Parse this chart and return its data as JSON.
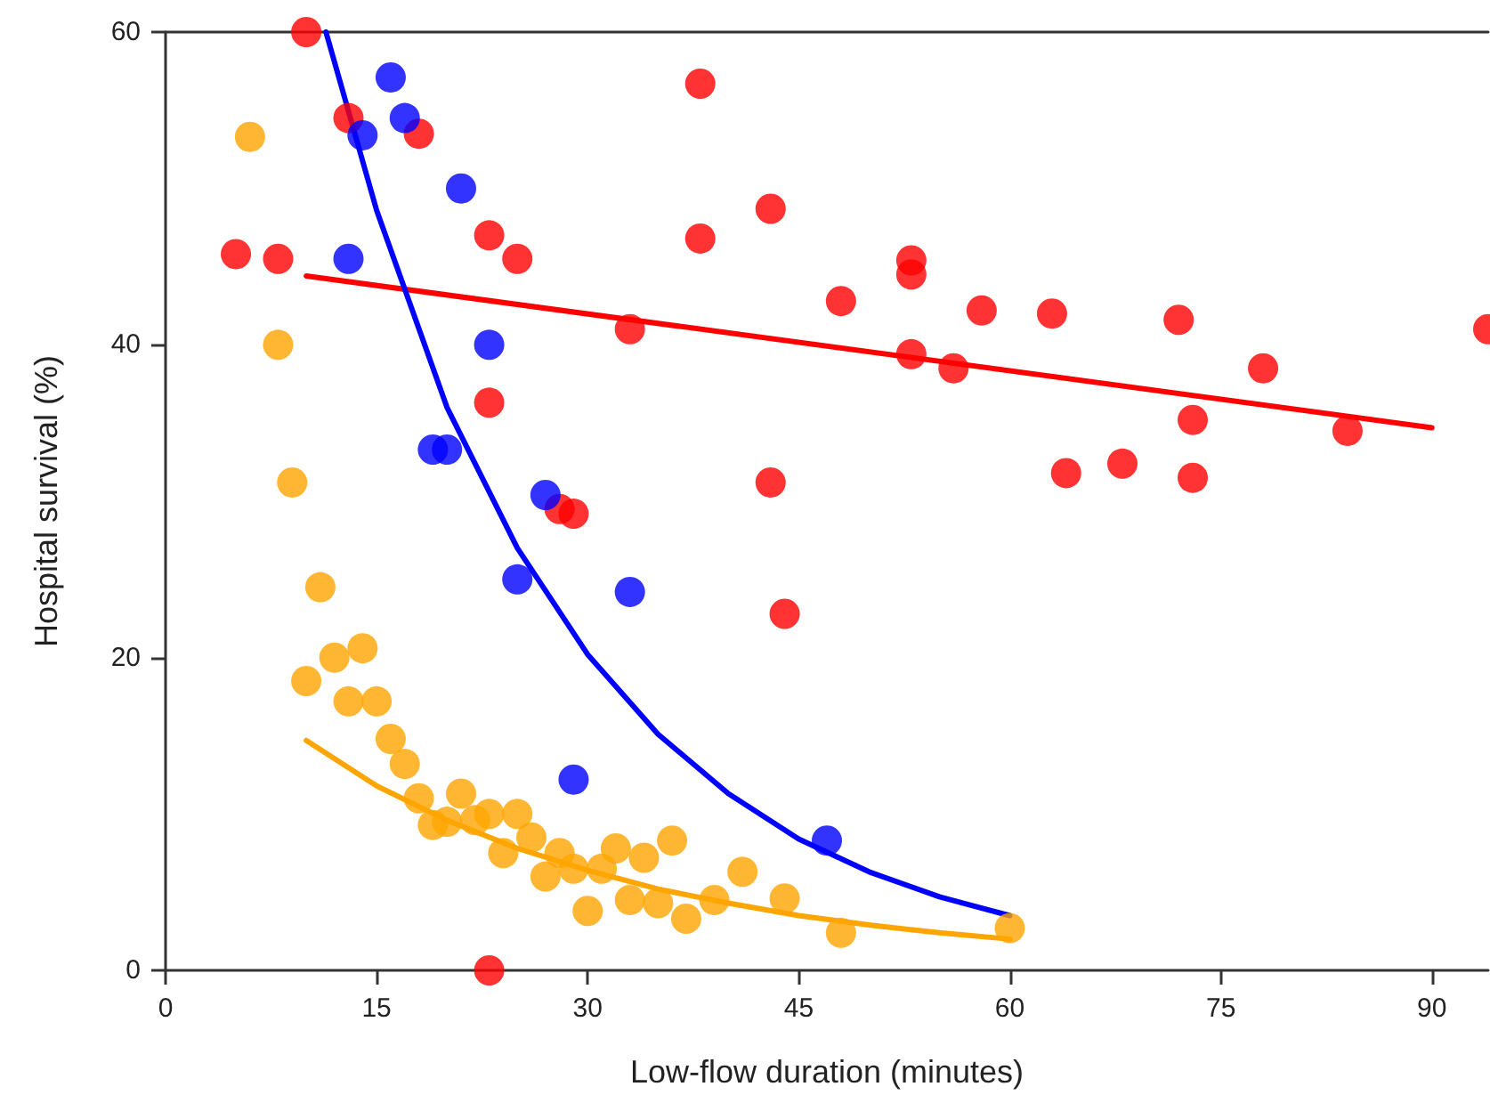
{
  "chart_data": {
    "type": "scatter",
    "xlabel": "Low-flow duration (minutes)",
    "ylabel": "Hospital survival (%)",
    "xlim": [
      0,
      94
    ],
    "xticks": [
      0,
      15,
      30,
      45,
      60,
      75,
      90
    ],
    "ylim": [
      0,
      60
    ],
    "yticks": [
      0,
      20,
      40,
      60
    ],
    "grid": false,
    "marker": "circle",
    "series": [
      {
        "color": "#ff0000",
        "x": [
          5,
          8,
          10,
          13,
          18,
          23,
          25,
          23,
          23,
          28,
          29,
          33,
          38,
          38,
          43,
          43,
          44,
          48,
          53,
          53,
          53,
          56,
          58,
          63,
          64,
          68,
          72,
          73,
          73,
          78,
          84,
          94
        ],
        "values": [
          45.8,
          45.5,
          60,
          54.5,
          53.5,
          47,
          45.5,
          36.3,
          0,
          29.5,
          29.2,
          41,
          56.7,
          46.8,
          48.7,
          31.2,
          22.8,
          42.8,
          45.4,
          44.5,
          39.4,
          38.5,
          42.2,
          42,
          31.8,
          32.4,
          41.6,
          35.2,
          31.5,
          38.5,
          34.5,
          41
        ]
      },
      {
        "color": "#0000ff",
        "x": [
          13,
          14,
          16,
          17,
          19,
          20,
          21,
          23,
          25,
          27,
          29,
          33,
          47
        ],
        "values": [
          45.5,
          53.4,
          57.1,
          54.5,
          33.3,
          33.3,
          50,
          40,
          25,
          30.4,
          12.2,
          24.2,
          8.3
        ]
      },
      {
        "color": "#ffa500",
        "x": [
          6,
          8,
          9,
          10,
          11,
          12,
          13,
          14,
          15,
          16,
          17,
          18,
          19,
          20,
          21,
          22,
          23,
          24,
          25,
          26,
          27,
          28,
          29,
          30,
          31,
          32,
          33,
          34,
          35,
          36,
          37,
          39,
          41,
          44,
          48,
          60
        ],
        "values": [
          53.3,
          40,
          31.2,
          18.5,
          24.5,
          20,
          17.2,
          20.6,
          17.2,
          14.8,
          13.2,
          11,
          9.3,
          9.5,
          11.3,
          9.6,
          10,
          7.5,
          10,
          8.5,
          6,
          7.5,
          6.5,
          3.8,
          6.5,
          7.8,
          4.5,
          7.2,
          4.3,
          8.3,
          3.3,
          4.5,
          6.3,
          4.6,
          2.4,
          2.7
        ]
      },
      {
        "type": "line",
        "color": "#ff0000",
        "marker": "none",
        "x": [
          10,
          90
        ],
        "values": [
          44.4,
          34.7
        ]
      },
      {
        "type": "line",
        "color": "#0000ff",
        "marker": "none",
        "x": [
          11.4,
          15,
          20,
          25,
          30,
          35,
          40,
          45,
          50,
          55,
          60
        ],
        "values": [
          60,
          48.6,
          36,
          27,
          20.2,
          15.1,
          11.3,
          8.4,
          6.3,
          4.7,
          3.5
        ]
      },
      {
        "type": "line",
        "color": "#ffa500",
        "marker": "none",
        "x": [
          10,
          15,
          20,
          25,
          30,
          35,
          40,
          45,
          50,
          55,
          60
        ],
        "values": [
          14.7,
          11.8,
          9.6,
          7.8,
          6.4,
          5.2,
          4.3,
          3.5,
          2.9,
          2.4,
          2
        ]
      }
    ]
  }
}
